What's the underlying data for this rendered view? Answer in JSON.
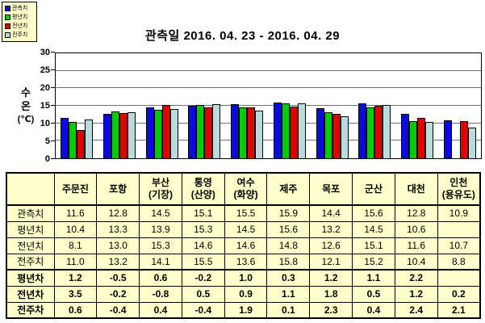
{
  "chart_data": {
    "type": "bar",
    "title": "관측일 2016. 04. 23 - 2016. 04. 29",
    "ylabel": "수온(℃)",
    "ylabel_lines": [
      "수",
      "온",
      "(℃)"
    ],
    "xlabel": "",
    "ylim": [
      0,
      30
    ],
    "ytick_step": 5,
    "grid": true,
    "legend_position": "top-left",
    "categories": [
      "주문진",
      "포항",
      "부산(기장)",
      "통영(산양)",
      "여수(화양)",
      "제주",
      "목포",
      "군산",
      "대천",
      "인천(용유도)"
    ],
    "series": [
      {
        "name": "관측치",
        "color": "#0A0AE0",
        "values": [
          11.6,
          12.8,
          14.5,
          15.1,
          15.5,
          15.9,
          14.4,
          15.6,
          12.8,
          10.9
        ]
      },
      {
        "name": "평년치",
        "color": "#00CC00",
        "values": [
          10.4,
          13.3,
          13.9,
          15.3,
          14.5,
          15.6,
          13.2,
          14.5,
          10.6,
          null
        ]
      },
      {
        "name": "전년치",
        "color": "#E00000",
        "values": [
          8.1,
          13.0,
          15.3,
          14.6,
          14.6,
          14.8,
          12.6,
          15.1,
          11.6,
          10.7
        ]
      },
      {
        "name": "전주치",
        "color": "#B8DCDE",
        "values": [
          11.0,
          13.2,
          14.1,
          15.5,
          13.6,
          15.8,
          12.1,
          15.2,
          10.4,
          8.8
        ]
      }
    ]
  },
  "table": {
    "corner_label": "",
    "columns": [
      "주문진",
      "포항",
      "부산\n(기장)",
      "통영\n(산양)",
      "여수\n(화양)",
      "제주",
      "목포",
      "군산",
      "대천",
      "인천\n(용유도)"
    ],
    "rows": [
      {
        "label": "관측치",
        "bold": false,
        "values": [
          "11.6",
          "12.8",
          "14.5",
          "15.1",
          "15.5",
          "15.9",
          "14.4",
          "15.6",
          "12.8",
          "10.9"
        ]
      },
      {
        "label": "평년치",
        "bold": false,
        "values": [
          "10.4",
          "13.3",
          "13.9",
          "15.3",
          "14.5",
          "15.6",
          "13.2",
          "14.5",
          "10.6",
          ""
        ]
      },
      {
        "label": "전년치",
        "bold": false,
        "values": [
          "8.1",
          "13.0",
          "15.3",
          "14.6",
          "14.6",
          "14.8",
          "12.6",
          "15.1",
          "11.6",
          "10.7"
        ]
      },
      {
        "label": "전주치",
        "bold": false,
        "values": [
          "11.0",
          "13.2",
          "14.1",
          "15.5",
          "13.6",
          "15.8",
          "12.1",
          "15.2",
          "10.4",
          "8.8"
        ]
      },
      {
        "label": "평년차",
        "bold": true,
        "values": [
          "1.2",
          "-0.5",
          "0.6",
          "-0.2",
          "1.0",
          "0.3",
          "1.2",
          "1.1",
          "2.2",
          ""
        ]
      },
      {
        "label": "전년차",
        "bold": true,
        "values": [
          "3.5",
          "-0.2",
          "-0.8",
          "0.5",
          "0.9",
          "1.1",
          "1.8",
          "0.5",
          "1.2",
          "0.2"
        ]
      },
      {
        "label": "전주차",
        "bold": true,
        "values": [
          "0.6",
          "-0.4",
          "0.4",
          "-0.4",
          "1.9",
          "0.1",
          "2.3",
          "0.4",
          "2.4",
          "2.1"
        ]
      }
    ]
  },
  "colors": {
    "panel_bg": "#FFFFCC",
    "gridline": "#707070",
    "axis": "#000000",
    "background": "#FFFFFF"
  }
}
